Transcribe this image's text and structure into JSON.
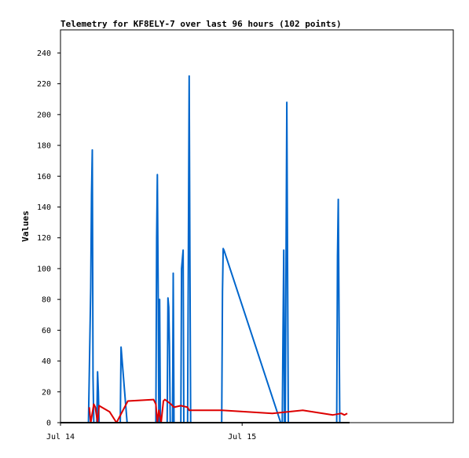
{
  "chart_data": {
    "type": "line",
    "title": "Telemetry for KF8ELY-7 over last 96 hours (102 points)",
    "xlabel": "",
    "ylabel": "Values",
    "ylim": [
      0,
      255
    ],
    "yticks": [
      0,
      20,
      40,
      60,
      80,
      100,
      120,
      140,
      160,
      180,
      200,
      220,
      240
    ],
    "x_unit": "hours since Jul 14 00:00",
    "xlim": [
      0,
      51.9
    ],
    "xticks": [
      {
        "x": 0,
        "label": "Jul 14"
      },
      {
        "x": 24,
        "label": "Jul 15"
      }
    ],
    "grid": false,
    "series": [
      {
        "color": "#0066cc",
        "points": [
          [
            3.7,
            0
          ],
          [
            3.8,
            30
          ],
          [
            4.0,
            88
          ],
          [
            4.1,
            148
          ],
          [
            4.2,
            177
          ],
          [
            4.3,
            30
          ],
          [
            4.4,
            0
          ],
          [
            4.8,
            0
          ],
          [
            4.9,
            33
          ],
          [
            5.0,
            20
          ],
          [
            5.1,
            0
          ],
          [
            7.9,
            0
          ],
          [
            8.0,
            49
          ],
          [
            8.8,
            0
          ],
          [
            12.6,
            0
          ],
          [
            12.7,
            120
          ],
          [
            12.8,
            161
          ],
          [
            12.9,
            90
          ],
          [
            13.0,
            0
          ],
          [
            13.1,
            80
          ],
          [
            13.2,
            0
          ],
          [
            14.1,
            0
          ],
          [
            14.2,
            81
          ],
          [
            14.3,
            75
          ],
          [
            14.4,
            50
          ],
          [
            14.5,
            0
          ],
          [
            14.8,
            0
          ],
          [
            14.9,
            97
          ],
          [
            15.0,
            0
          ],
          [
            15.9,
            0
          ],
          [
            16.0,
            100
          ],
          [
            16.2,
            112
          ],
          [
            16.3,
            0
          ],
          [
            16.8,
            0
          ],
          [
            16.9,
            112
          ],
          [
            17.0,
            225
          ],
          [
            17.1,
            112
          ],
          [
            17.2,
            0
          ],
          [
            21.3,
            0
          ],
          [
            21.4,
            85
          ],
          [
            21.5,
            113
          ],
          [
            21.6,
            112
          ],
          [
            29.1,
            0
          ],
          [
            29.3,
            0
          ],
          [
            29.4,
            56
          ],
          [
            29.5,
            112
          ],
          [
            29.6,
            0
          ],
          [
            29.7,
            0
          ],
          [
            29.8,
            105
          ],
          [
            29.9,
            208
          ],
          [
            30.0,
            105
          ],
          [
            30.1,
            0
          ],
          [
            36.5,
            0
          ],
          [
            36.6,
            108
          ],
          [
            36.7,
            145
          ],
          [
            36.8,
            75
          ],
          [
            36.9,
            0
          ]
        ]
      },
      {
        "color": "#dd0000",
        "points": [
          [
            3.8,
            10
          ],
          [
            4.0,
            0
          ],
          [
            4.1,
            3
          ],
          [
            4.4,
            12
          ],
          [
            4.6,
            10
          ],
          [
            4.9,
            0
          ],
          [
            5.1,
            11
          ],
          [
            6.5,
            7
          ],
          [
            7.4,
            0
          ],
          [
            8.9,
            14
          ],
          [
            12.3,
            15
          ],
          [
            12.6,
            12
          ],
          [
            12.8,
            0
          ],
          [
            13.0,
            8
          ],
          [
            13.3,
            0
          ],
          [
            13.6,
            14
          ],
          [
            13.8,
            15
          ],
          [
            14.6,
            12
          ],
          [
            15.0,
            10
          ],
          [
            15.9,
            11
          ],
          [
            16.8,
            10
          ],
          [
            17.0,
            8
          ],
          [
            21.3,
            8
          ],
          [
            28.0,
            6
          ],
          [
            32.0,
            8
          ],
          [
            36.0,
            5
          ],
          [
            37.1,
            6
          ],
          [
            37.5,
            5
          ],
          [
            37.9,
            6
          ]
        ]
      },
      {
        "color": "#000000",
        "points": [
          [
            0,
            0
          ],
          [
            38.2,
            0
          ]
        ]
      }
    ]
  }
}
